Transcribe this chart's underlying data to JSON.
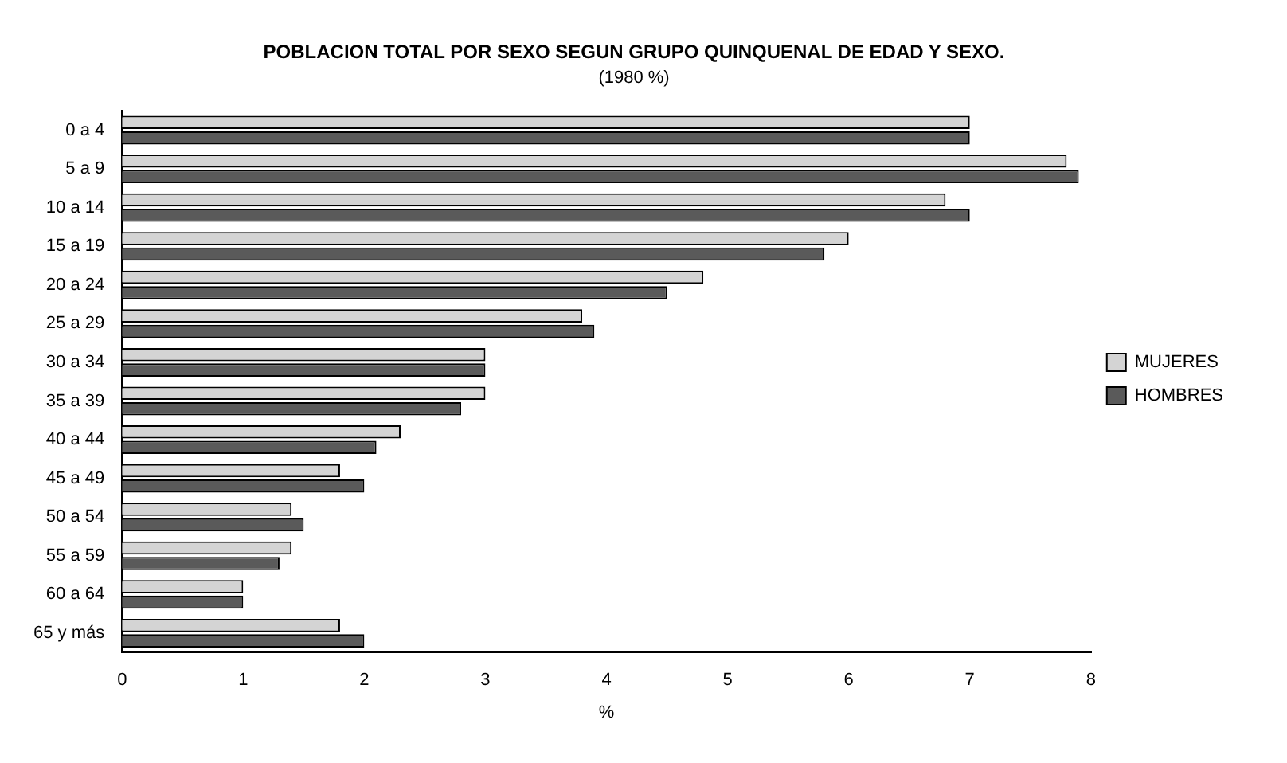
{
  "chart_data": {
    "type": "bar",
    "orientation": "horizontal",
    "title": "POBLACION TOTAL POR SEXO SEGUN GRUPO QUINQUENAL DE EDAD Y SEXO.",
    "subtitle": "(1980 %)",
    "xlabel": "%",
    "categories": [
      "0 a 4",
      "5 a 9",
      "10 a 14",
      "15 a 19",
      "20 a 24",
      "25 a 29",
      "30 a 34",
      "35 a 39",
      "40 a 44",
      "45 a 49",
      "50 a 54",
      "55 a 59",
      "60 a 64",
      "65 y más"
    ],
    "series": [
      {
        "name": "MUJERES",
        "color": "#d4d4d4",
        "values": [
          7.0,
          7.8,
          6.8,
          6.0,
          4.8,
          3.8,
          3.0,
          3.0,
          2.3,
          1.8,
          1.4,
          1.4,
          1.0,
          1.8
        ]
      },
      {
        "name": "HOMBRES",
        "color": "#5a5a5a",
        "values": [
          7.0,
          7.9,
          7.0,
          5.8,
          4.5,
          3.9,
          3.0,
          2.8,
          2.1,
          2.0,
          1.5,
          1.3,
          1.0,
          2.0
        ]
      }
    ],
    "xlim": [
      0,
      8
    ],
    "xticks": [
      0,
      1,
      2,
      3,
      4,
      5,
      6,
      7,
      8
    ],
    "grid": false,
    "legend": "right"
  }
}
